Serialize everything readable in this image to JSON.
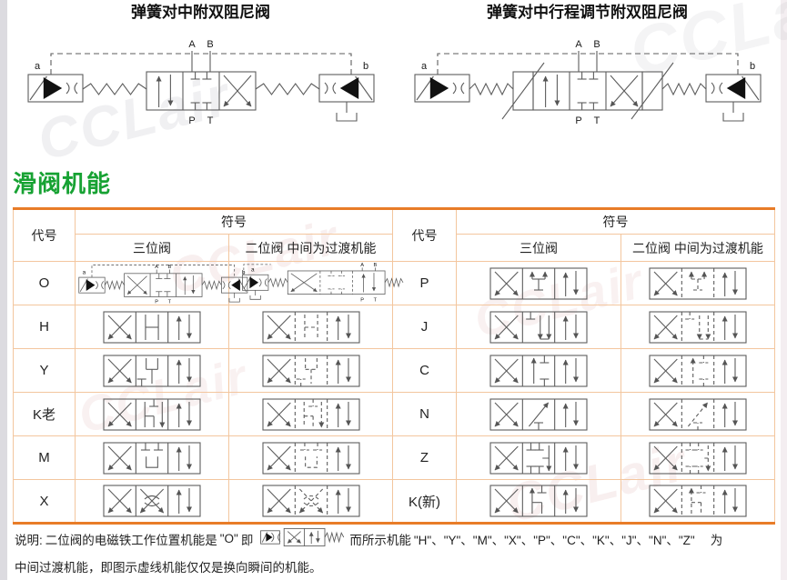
{
  "watermark_text": "CCLair",
  "section_title": "滑阀机能",
  "diagrams": [
    {
      "title": "弹簧对中附双阻尼阀",
      "stroke_adjust": false,
      "labels": {
        "A": "A",
        "B": "B",
        "P": "P",
        "T": "T",
        "a": "a",
        "b": "b"
      }
    },
    {
      "title": "弹簧对中行程调节附双阻尼阀",
      "stroke_adjust": true,
      "labels": {
        "A": "A",
        "B": "B",
        "P": "P",
        "T": "T",
        "a": "a",
        "b": "b"
      }
    }
  ],
  "table": {
    "headers": {
      "code": "代号",
      "symbol": "符号",
      "three_pos": "三位阀",
      "two_pos": "二位阀 中间为过渡机能"
    },
    "o_labels": {
      "A": "A",
      "B": "B",
      "P": "P",
      "T": "T",
      "a": "a",
      "b": "b"
    },
    "left_rows": [
      {
        "code": "O",
        "center": "O-schematic"
      },
      {
        "code": "H",
        "center": "H"
      },
      {
        "code": "Y",
        "center": "Y"
      },
      {
        "code": "K老",
        "center": "K-old"
      },
      {
        "code": "M",
        "center": "M"
      },
      {
        "code": "X",
        "center": "X-throttle"
      }
    ],
    "right_rows": [
      {
        "code": "P",
        "center": "P"
      },
      {
        "code": "J",
        "center": "J"
      },
      {
        "code": "C",
        "center": "C"
      },
      {
        "code": "N",
        "center": "N"
      },
      {
        "code": "Z",
        "center": "Z"
      },
      {
        "code": "K(新)",
        "center": "K-new"
      }
    ]
  },
  "note": {
    "label": "说明:",
    "text1": "二位阀的电磁铁工作位置机能是",
    "o_code": "\"O\"",
    "text2": "即",
    "text3": "而所示机能",
    "codes": "\"H\"、\"Y\"、\"M\"、\"X\"、\"P\"、\"C\"、\"K\"、\"J\"、\"N\"、\"Z\"",
    "text4": "为",
    "line2": "中间过渡机能，即图示虚线机能仅仅是换向瞬间的机能。"
  },
  "colors": {
    "table_border": "#e87c28",
    "table_grid": "#f3c69e",
    "section_title_green": "#17a233",
    "schematic_line": "#5d5d5d",
    "page_edge_left": "#dcdbe0",
    "page_edge_right": "#f4eef1"
  }
}
